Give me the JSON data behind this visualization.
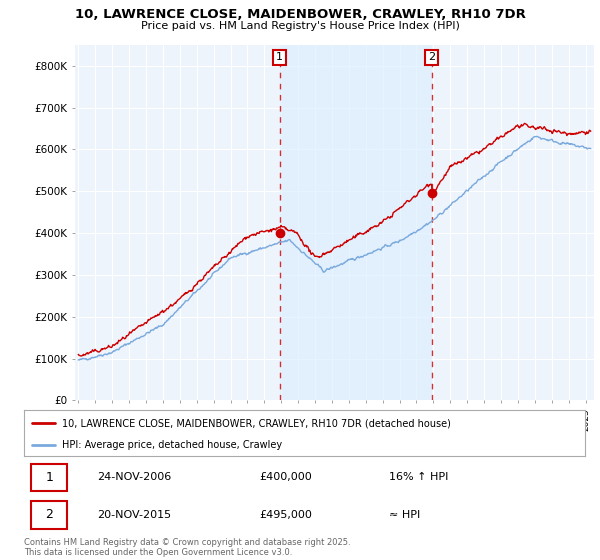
{
  "title1": "10, LAWRENCE CLOSE, MAIDENBOWER, CRAWLEY, RH10 7DR",
  "title2": "Price paid vs. HM Land Registry's House Price Index (HPI)",
  "ylabel_ticks": [
    "£0",
    "£100K",
    "£200K",
    "£300K",
    "£400K",
    "£500K",
    "£600K",
    "£700K",
    "£800K"
  ],
  "ytick_vals": [
    0,
    100000,
    200000,
    300000,
    400000,
    500000,
    600000,
    700000,
    800000
  ],
  "ylim": [
    0,
    850000
  ],
  "xlim_start": 1994.8,
  "xlim_end": 2025.5,
  "sale1_date": 2006.9,
  "sale1_price": 400000,
  "sale1_label": "1",
  "sale2_date": 2015.9,
  "sale2_price": 495000,
  "sale2_label": "2",
  "annotation1_date": "24-NOV-2006",
  "annotation1_price": "£400,000",
  "annotation1_hpi": "16% ↑ HPI",
  "annotation2_date": "20-NOV-2015",
  "annotation2_price": "£495,000",
  "annotation2_hpi": "≈ HPI",
  "legend1": "10, LAWRENCE CLOSE, MAIDENBOWER, CRAWLEY, RH10 7DR (detached house)",
  "legend2": "HPI: Average price, detached house, Crawley",
  "footer": "Contains HM Land Registry data © Crown copyright and database right 2025.\nThis data is licensed under the Open Government Licence v3.0.",
  "red_color": "#cc0000",
  "blue_color": "#7aaadd",
  "fill_color": "#ddeeff",
  "bg_color": "#eef4fb",
  "grid_color": "#ffffff"
}
